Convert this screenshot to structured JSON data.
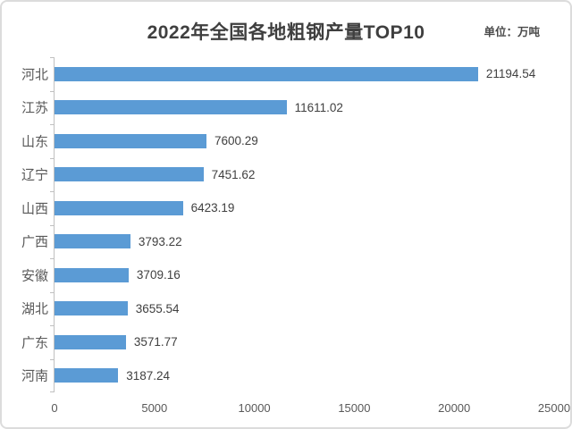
{
  "header": {
    "title": "2022年全国各地粗钢产量TOP10",
    "unit_label": "单位：万吨"
  },
  "chart_data": {
    "type": "bar",
    "orientation": "horizontal",
    "title": "2022年全国各地粗钢产量TOP10",
    "subtitle": "单位：万吨",
    "categories": [
      "河北",
      "江苏",
      "山东",
      "辽宁",
      "山西",
      "广西",
      "安徽",
      "湖北",
      "广东",
      "河南"
    ],
    "values": [
      21194.54,
      11611.02,
      7600.29,
      7451.62,
      6423.19,
      3793.22,
      3709.16,
      3655.54,
      3571.77,
      3187.24
    ],
    "value_labels": [
      "21194.54",
      "11611.02",
      "7600.29",
      "7451.62",
      "6423.19",
      "3793.22",
      "3709.16",
      "3655.54",
      "3571.77",
      "3187.24"
    ],
    "x_ticks": [
      "0",
      "5000",
      "10000",
      "15000",
      "20000",
      "25000"
    ],
    "xlim": [
      0,
      25000
    ],
    "xlabel": "",
    "ylabel": "",
    "grid": false,
    "legend": false,
    "bar_color": "#5b9bd5",
    "axis_color": "#c0c0c0",
    "text_color": "#404040"
  }
}
